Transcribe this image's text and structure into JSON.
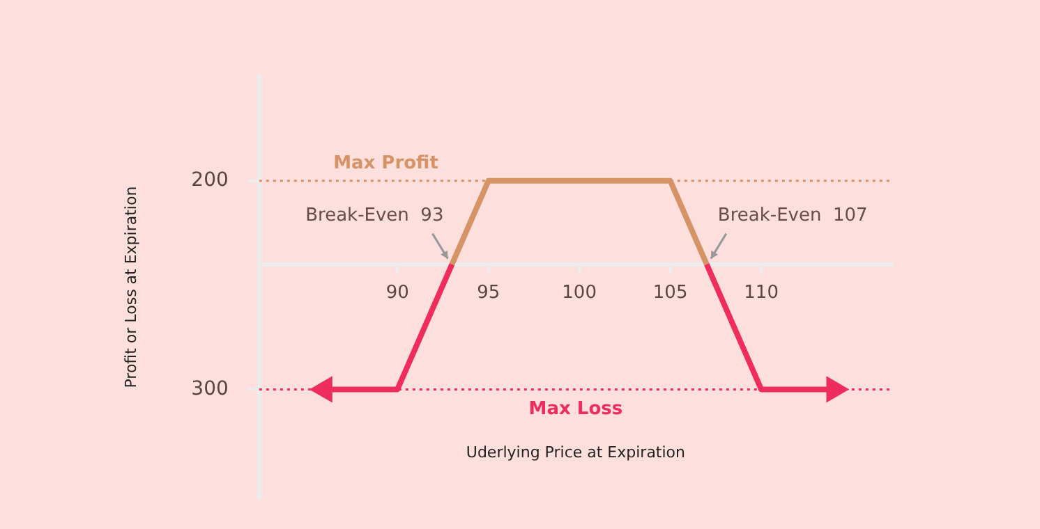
{
  "chart_data": {
    "type": "line",
    "xlabel": "Uderlying Price at Expiration",
    "ylabel": "Profit or Loss at Expiration",
    "xlim": [
      82.4,
      117.2
    ],
    "xticks": [
      90,
      95,
      100,
      105,
      110
    ],
    "ylim": [
      -560,
      450
    ],
    "yticks": [
      200,
      {
        "value": -300,
        "label": "300"
      }
    ],
    "series": [
      {
        "color": "#ee2d5d",
        "x": [
          86,
          90,
          93,
          100,
          107,
          110,
          114
        ],
        "values": [
          -300,
          -300,
          0,
          null,
          0,
          -300,
          -300
        ]
      },
      {
        "color": "#d69466",
        "x": [
          93,
          95,
          105,
          107
        ],
        "values": [
          0,
          200,
          200,
          0
        ]
      }
    ],
    "ref_lines": [
      {
        "axis": "y",
        "value": 200,
        "label": "Max Profit",
        "color": "#d69466",
        "line_style": "dotted"
      },
      {
        "axis": "y",
        "value": -300,
        "label": "Max Loss",
        "color": "#ee2d5d",
        "line_style": "dotted"
      }
    ],
    "annotations": [
      {
        "text": "Break-Even  93",
        "x": 93,
        "y": 0
      },
      {
        "text": "Break-Even  107",
        "x": 107,
        "y": 0
      }
    ],
    "grid": false,
    "legend": false
  }
}
